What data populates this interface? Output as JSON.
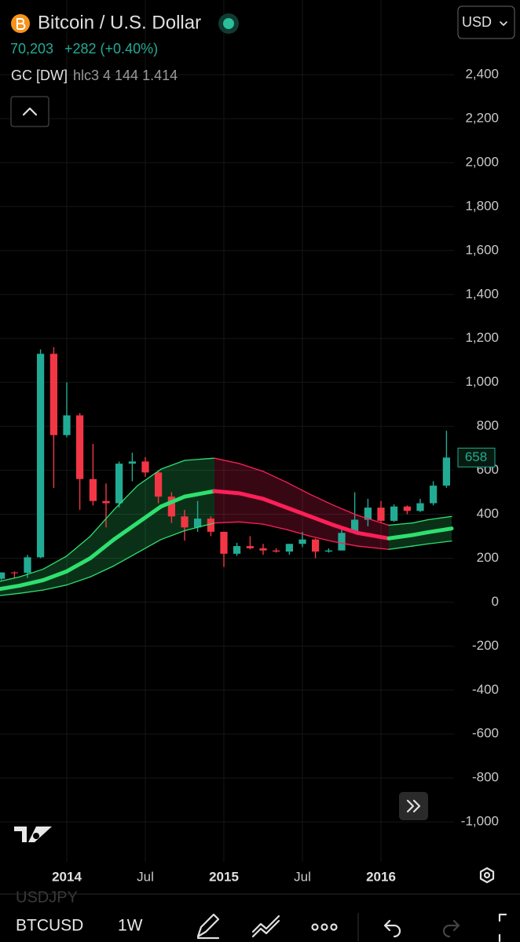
{
  "header": {
    "symbol_name": "Bitcoin / U.S. Dollar",
    "price": "70,203",
    "change": "+282 (+0.40%)",
    "indicator_name": "GC [DW]",
    "indicator_params": "hlc3 4 144 1.414",
    "currency": "USD"
  },
  "chart_data": {
    "type": "candlestick",
    "x": [
      2013.583,
      2013.667,
      2013.75,
      2013.833,
      2013.917,
      2014.0,
      2014.083,
      2014.167,
      2014.25,
      2014.333,
      2014.417,
      2014.5,
      2014.583,
      2014.667,
      2014.75,
      2014.833,
      2014.917,
      2015.0,
      2015.083,
      2015.167,
      2015.25,
      2015.333,
      2015.417,
      2015.5,
      2015.583,
      2015.667,
      2015.75,
      2015.833,
      2015.917,
      2016.0,
      2016.083,
      2016.167,
      2016.25,
      2016.333,
      2016.417
    ],
    "open": [
      106,
      135,
      133,
      204,
      1130,
      760,
      850,
      560,
      460,
      450,
      630,
      640,
      590,
      480,
      390,
      340,
      380,
      320,
      220,
      255,
      245,
      235,
      230,
      265,
      285,
      230,
      235,
      315,
      375,
      430,
      370,
      435,
      415,
      450,
      530
    ],
    "high": [
      135,
      140,
      215,
      1150,
      1160,
      1000,
      860,
      720,
      540,
      640,
      680,
      660,
      600,
      500,
      420,
      460,
      390,
      320,
      270,
      300,
      265,
      245,
      265,
      320,
      290,
      245,
      330,
      500,
      470,
      460,
      445,
      440,
      470,
      550,
      780
    ],
    "low": [
      100,
      110,
      110,
      200,
      520,
      750,
      420,
      440,
      340,
      430,
      550,
      570,
      450,
      360,
      280,
      320,
      300,
      160,
      210,
      240,
      215,
      225,
      215,
      250,
      200,
      225,
      235,
      310,
      345,
      360,
      365,
      400,
      410,
      440,
      520
    ],
    "close": [
      135,
      133,
      204,
      1130,
      760,
      850,
      560,
      460,
      450,
      630,
      640,
      590,
      480,
      390,
      340,
      380,
      320,
      220,
      255,
      245,
      235,
      230,
      265,
      285,
      230,
      235,
      315,
      375,
      430,
      370,
      435,
      415,
      450,
      530,
      658
    ],
    "up_color": "#22ab94",
    "down_color": "#f23645",
    "last_price": 658,
    "channel": {
      "x": [
        2013.575,
        2013.7,
        2013.85,
        2014.0,
        2014.15,
        2014.3,
        2014.45,
        2014.6,
        2014.75,
        2014.94,
        2015.1,
        2015.25,
        2015.4,
        2015.55,
        2015.7,
        2015.85,
        2016.05,
        2016.2,
        2016.3,
        2016.45
      ],
      "upper": [
        95,
        115,
        150,
        210,
        300,
        420,
        530,
        605,
        645,
        655,
        630,
        595,
        545,
        490,
        440,
        395,
        350,
        360,
        375,
        390
      ],
      "mid": [
        60,
        75,
        100,
        140,
        200,
        285,
        360,
        435,
        480,
        505,
        495,
        470,
        430,
        390,
        350,
        315,
        290,
        305,
        318,
        335
      ],
      "lower": [
        30,
        40,
        55,
        78,
        115,
        165,
        225,
        285,
        325,
        360,
        365,
        355,
        330,
        300,
        275,
        255,
        240,
        255,
        265,
        278
      ],
      "colors": [
        "#2ee06f",
        "#2ee06f",
        "#2ee06f",
        "#2ee06f",
        "#2ee06f",
        "#2ee06f",
        "#2ee06f",
        "#2ee06f",
        "#2ee06f",
        "#2ee06f",
        "#ff1f5a",
        "#ff1f5a",
        "#ff1f5a",
        "#ff1f5a",
        "#ff1f5a",
        "#ff1f5a",
        "#ff1f5a",
        "#2ee06f",
        "#2ee06f",
        "#2ee06f"
      ]
    },
    "xlim": [
      2013.575,
      2016.465
    ],
    "ylim": [
      -1182,
      2740
    ],
    "xticks": [
      {
        "value": 2014,
        "label": "2014"
      },
      {
        "value": 2014.5,
        "label": "Jul"
      },
      {
        "value": 2015,
        "label": "2015"
      },
      {
        "value": 2015.5,
        "label": "Jul"
      },
      {
        "value": 2016,
        "label": "2016"
      }
    ],
    "yticks": [
      {
        "value": 2400,
        "label": "2,400"
      },
      {
        "value": 2200,
        "label": "2,200"
      },
      {
        "value": 2000,
        "label": "2,000"
      },
      {
        "value": 1800,
        "label": "1,800"
      },
      {
        "value": 1600,
        "label": "1,600"
      },
      {
        "value": 1400,
        "label": "1,400"
      },
      {
        "value": 1200,
        "label": "1,200"
      },
      {
        "value": 1000,
        "label": "1,000"
      },
      800,
      600,
      400,
      200,
      0,
      -200,
      -400,
      -600,
      -800,
      {
        "value": -1000,
        "label": "-1,000"
      }
    ],
    "grid": true
  },
  "toolbar": {
    "faded_symbol": "USDJPY",
    "symbol": "BTCUSD",
    "interval": "1W"
  }
}
